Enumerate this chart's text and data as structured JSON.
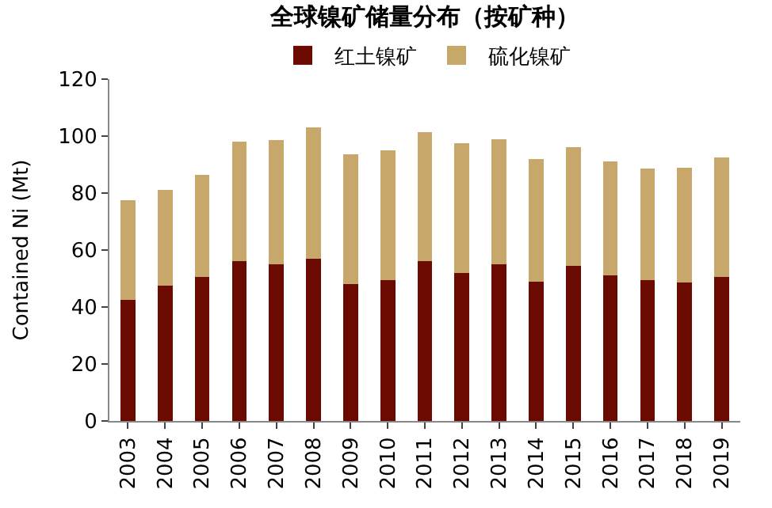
{
  "chart_data": {
    "type": "bar",
    "title": "全球镍矿储量分布（按矿种）",
    "ylabel": "Contained Ni (Mt)",
    "categories": [
      "2003",
      "2004",
      "2005",
      "2006",
      "2007",
      "2008",
      "2009",
      "2010",
      "2011",
      "2012",
      "2013",
      "2014",
      "2015",
      "2016",
      "2017",
      "2018",
      "2019"
    ],
    "series": [
      {
        "name": "红土镍矿",
        "color": "#6b0a00",
        "values": [
          42.5,
          47.5,
          50.5,
          56,
          55,
          57,
          48,
          49.5,
          56,
          52,
          55,
          49,
          54.5,
          51,
          49.5,
          48.5,
          50.5
        ]
      },
      {
        "name": "硫化镍矿",
        "color": "#c8a86a",
        "values": [
          35,
          33.5,
          36,
          42,
          43.5,
          46,
          45.5,
          45.5,
          45.5,
          45.5,
          44,
          43,
          41.5,
          40,
          39,
          40.5,
          42
        ]
      }
    ],
    "stacked": true,
    "ylim": [
      0,
      120
    ],
    "yticks": [
      0,
      20,
      40,
      60,
      80,
      100,
      120
    ],
    "legend": "top"
  }
}
